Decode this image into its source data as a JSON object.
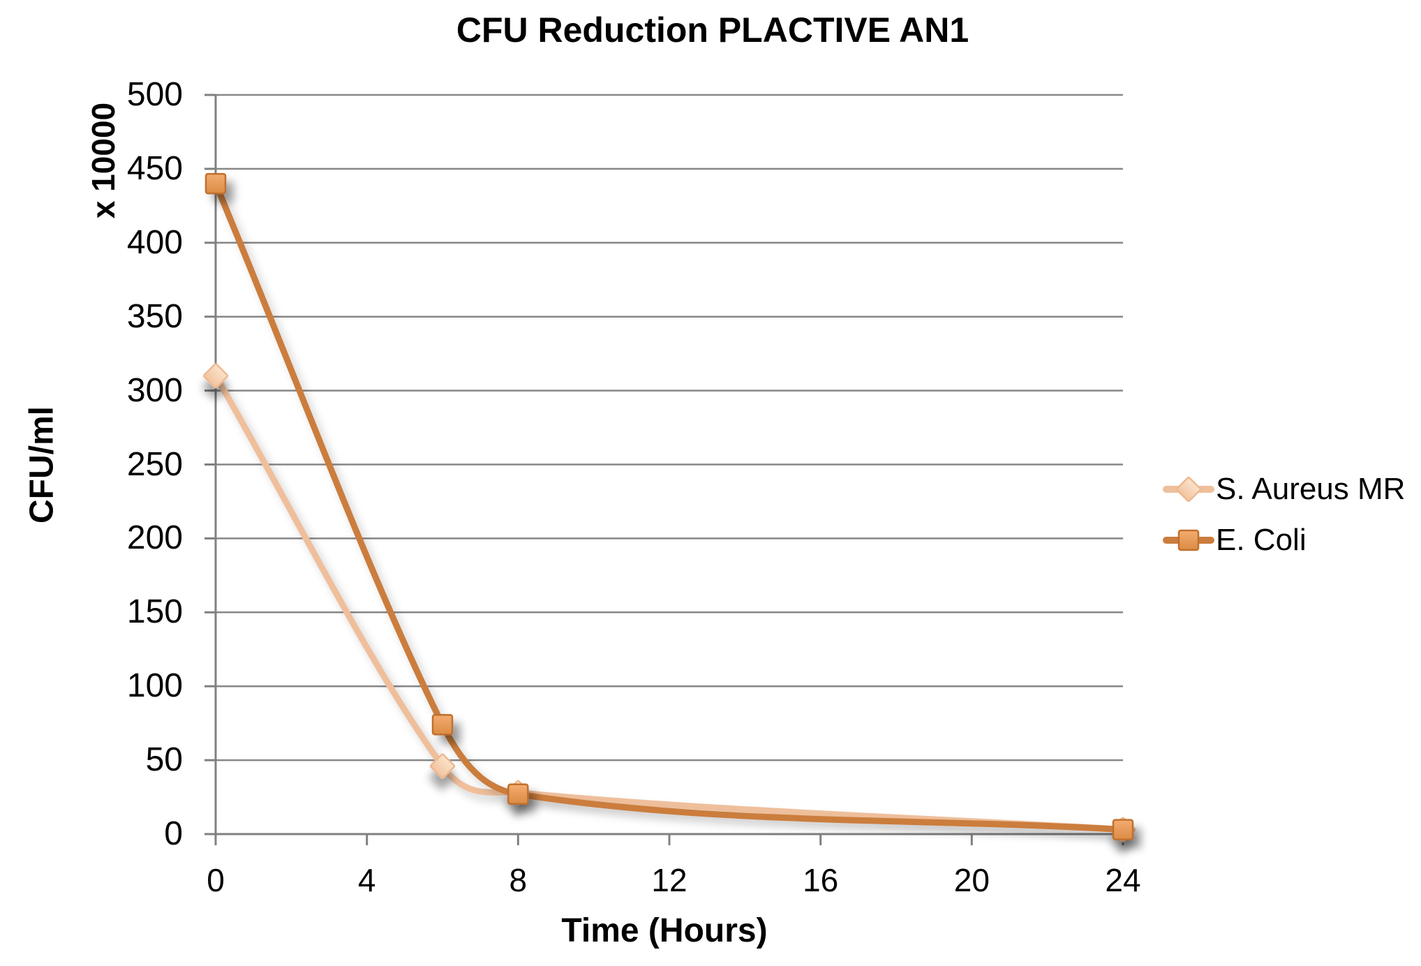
{
  "chart_data": {
    "type": "line",
    "smooth": true,
    "title": "CFU Reduction PLACTIVE AN1",
    "xlabel": "Time (Hours)",
    "ylabel": "CFU/ml",
    "y_unit_note": "x 10000",
    "xlim": [
      0,
      24
    ],
    "ylim": [
      0,
      500
    ],
    "x_ticks": [
      0,
      4,
      8,
      12,
      16,
      20,
      24
    ],
    "y_ticks": [
      0,
      50,
      100,
      150,
      200,
      250,
      300,
      350,
      400,
      450,
      500
    ],
    "grid": "horizontal-major",
    "legend_position": "right-middle",
    "series": [
      {
        "name": "S. Aureus MR",
        "marker": "diamond",
        "x": [
          0,
          6,
          8,
          24
        ],
        "values": [
          310,
          46,
          28,
          3
        ],
        "line_color": "#EFBF9C",
        "marker_fill_top": "#FAE3CB",
        "marker_fill_bottom": "#F2C49E",
        "marker_border": "#EDB891"
      },
      {
        "name": "E. Coli",
        "marker": "square",
        "x": [
          0,
          6,
          8,
          24
        ],
        "values": [
          440,
          74,
          27,
          3
        ],
        "line_color": "#CB7D3E",
        "marker_fill_top": "#F3AC70",
        "marker_fill_bottom": "#DB8B44",
        "marker_border": "#C0702D"
      }
    ],
    "colors": {
      "gridline": "#878787",
      "axis": "#808080",
      "text": "#000000",
      "background": "#FFFFFF"
    }
  }
}
